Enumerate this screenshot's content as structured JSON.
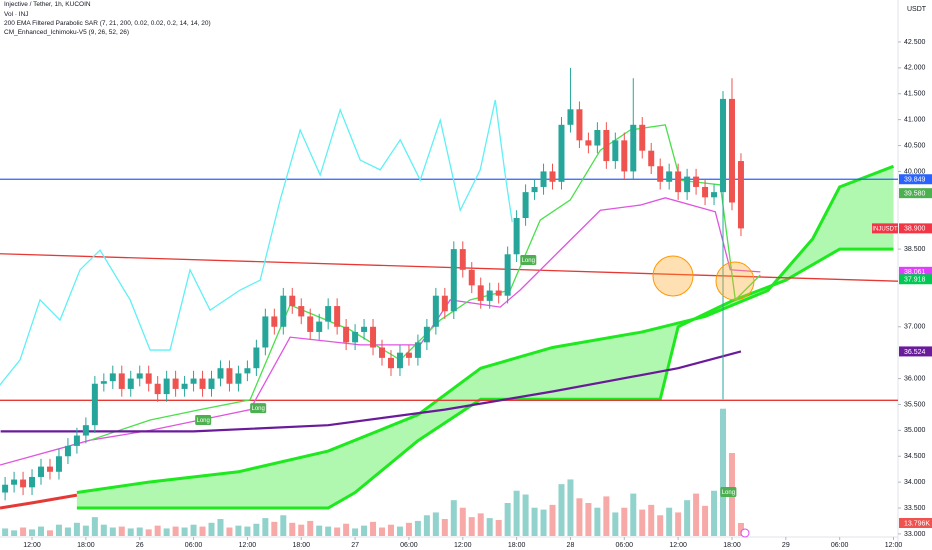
{
  "chart_data": {
    "type": "candlestick",
    "title": "Injective / Tether, 1h, KUCOIN",
    "indicators": [
      "Vol · INJ",
      "200 EMA Filtered Parabolic SAR (7, 21, 200, 0.02, 0.02, 0.2, 14, 14, 20)",
      "CM_Enhanced_Ichimoku-V5 (9, 26, 52, 26)"
    ],
    "currency": "USDT",
    "up_color": "#26a69a",
    "down_color": "#ef5350",
    "x": [
      9,
      10,
      11,
      12,
      13,
      14,
      15,
      16,
      17,
      18,
      19,
      20,
      21,
      22,
      23,
      24,
      25,
      26,
      27,
      28,
      29,
      30,
      31,
      32,
      33,
      34,
      35,
      36,
      37,
      38,
      39,
      40,
      41,
      42,
      43,
      44,
      45,
      46,
      47,
      48,
      49,
      50,
      51,
      52,
      53,
      54,
      55,
      56,
      57,
      58,
      59,
      60,
      61,
      62,
      63,
      64,
      65,
      66,
      67,
      68,
      69,
      70,
      71,
      72,
      73,
      74,
      75,
      76,
      77,
      78,
      79,
      80,
      81,
      82,
      83,
      84,
      85,
      86,
      87,
      88,
      89,
      90,
      91
    ],
    "open": [
      33.8,
      33.95,
      34.05,
      33.9,
      34.1,
      34.3,
      34.2,
      34.5,
      34.7,
      34.9,
      35.1,
      35.9,
      35.95,
      36.1,
      35.8,
      36.0,
      36.1,
      35.9,
      35.7,
      36.0,
      35.8,
      35.9,
      36.0,
      35.8,
      36.0,
      36.2,
      35.9,
      36.1,
      36.2,
      36.6,
      37.2,
      37.0,
      37.6,
      37.4,
      37.2,
      36.9,
      37.1,
      37.4,
      37.0,
      36.7,
      36.9,
      37.0,
      36.6,
      36.4,
      36.2,
      36.5,
      36.4,
      36.7,
      37.0,
      37.6,
      37.3,
      38.5,
      38.1,
      37.8,
      37.5,
      37.7,
      37.6,
      38.4,
      39.1,
      39.6,
      39.7,
      40.0,
      39.8,
      40.9,
      41.2,
      40.6,
      40.5,
      40.8,
      40.2,
      40.6,
      40.0,
      40.9,
      40.4,
      40.1,
      39.8,
      40.0,
      39.6,
      39.9,
      39.7,
      39.5,
      39.6,
      41.4,
      40.2
    ],
    "high": [
      34.1,
      34.2,
      34.2,
      34.25,
      34.45,
      34.45,
      34.65,
      34.85,
      35.05,
      35.25,
      36.05,
      36.1,
      36.25,
      36.25,
      36.15,
      36.25,
      36.25,
      36.05,
      36.15,
      36.15,
      36.05,
      36.15,
      36.15,
      36.15,
      36.35,
      36.35,
      36.25,
      36.35,
      36.75,
      37.35,
      37.35,
      37.75,
      37.75,
      37.55,
      37.35,
      37.25,
      37.55,
      37.55,
      37.15,
      37.05,
      37.15,
      37.15,
      36.75,
      36.55,
      36.65,
      36.65,
      36.85,
      37.15,
      37.75,
      37.75,
      38.65,
      38.65,
      38.25,
      37.95,
      37.85,
      37.85,
      38.55,
      39.25,
      39.75,
      39.85,
      40.15,
      40.15,
      41.05,
      42.0,
      41.35,
      40.75,
      40.95,
      40.95,
      40.75,
      40.75,
      41.8,
      41.05,
      40.55,
      40.25,
      40.15,
      40.15,
      40.05,
      40.05,
      39.85,
      39.75,
      41.55,
      41.8,
      40.35
    ],
    "low": [
      33.65,
      33.8,
      33.75,
      33.75,
      33.95,
      34.05,
      34.05,
      34.35,
      34.55,
      34.75,
      34.95,
      35.75,
      35.8,
      35.65,
      35.65,
      35.85,
      35.75,
      35.55,
      35.55,
      35.65,
      35.65,
      35.75,
      35.65,
      35.65,
      35.85,
      35.75,
      35.75,
      35.95,
      36.05,
      36.45,
      36.85,
      36.85,
      37.25,
      37.05,
      36.75,
      36.75,
      36.95,
      36.85,
      36.55,
      36.55,
      36.75,
      36.45,
      36.25,
      36.05,
      36.05,
      36.25,
      36.25,
      36.55,
      36.85,
      37.15,
      37.15,
      37.95,
      37.65,
      37.35,
      37.35,
      37.45,
      37.45,
      38.25,
      38.95,
      39.45,
      39.55,
      39.65,
      39.65,
      40.75,
      40.45,
      40.35,
      40.35,
      40.05,
      40.05,
      39.85,
      39.85,
      40.25,
      39.95,
      39.65,
      39.65,
      39.45,
      39.45,
      39.55,
      39.35,
      39.35,
      35.6,
      39.25,
      38.75
    ],
    "close": [
      33.95,
      34.05,
      33.9,
      34.1,
      34.3,
      34.2,
      34.5,
      34.7,
      34.9,
      35.1,
      35.9,
      35.95,
      36.1,
      35.8,
      36.0,
      36.1,
      35.9,
      35.7,
      36.0,
      35.8,
      35.9,
      36.0,
      35.8,
      36.0,
      36.2,
      35.9,
      36.1,
      36.2,
      36.6,
      37.2,
      37.0,
      37.6,
      37.4,
      37.2,
      36.9,
      37.1,
      37.4,
      37.0,
      36.7,
      36.9,
      37.0,
      36.6,
      36.4,
      36.2,
      36.5,
      36.4,
      36.7,
      37.0,
      37.6,
      37.3,
      38.5,
      38.1,
      37.8,
      37.5,
      37.7,
      37.6,
      38.4,
      39.1,
      39.6,
      39.7,
      40.0,
      39.8,
      40.9,
      41.2,
      40.6,
      40.5,
      40.8,
      40.2,
      40.6,
      40.0,
      40.9,
      40.4,
      40.1,
      39.8,
      40.0,
      39.6,
      39.9,
      39.7,
      39.5,
      39.6,
      41.4,
      39.4,
      38.9
    ],
    "volume": [
      8,
      6,
      9,
      7,
      10,
      6,
      12,
      9,
      14,
      11,
      20,
      12,
      9,
      10,
      8,
      9,
      7,
      11,
      8,
      10,
      9,
      12,
      10,
      14,
      18,
      9,
      11,
      10,
      13,
      19,
      15,
      22,
      14,
      12,
      16,
      11,
      10,
      9,
      13,
      8,
      11,
      15,
      9,
      12,
      10,
      14,
      16,
      22,
      25,
      18,
      38,
      30,
      20,
      24,
      19,
      17,
      35,
      48,
      44,
      30,
      28,
      33,
      55,
      60,
      40,
      35,
      30,
      42,
      25,
      30,
      45,
      28,
      33,
      22,
      30,
      25,
      38,
      45,
      32,
      48,
      135,
      88,
      13.796
    ],
    "volume_ylim": [
      0,
      140
    ],
    "volume_tag": {
      "value": 13.796,
      "label": "13.796K"
    },
    "xlim": [
      8.43,
      108.5
    ],
    "ylim": [
      32.96,
      43.31
    ],
    "xticks": [
      {
        "value": 12,
        "label": "12:00"
      },
      {
        "value": 18,
        "label": "18:00"
      },
      {
        "value": 24,
        "label": "26"
      },
      {
        "value": 30,
        "label": "06:00"
      },
      {
        "value": 36,
        "label": "12:00"
      },
      {
        "value": 42,
        "label": "18:00"
      },
      {
        "value": 48,
        "label": "27"
      },
      {
        "value": 54,
        "label": "06:00"
      },
      {
        "value": 60,
        "label": "12:00"
      },
      {
        "value": 66,
        "label": "18:00"
      },
      {
        "value": 72,
        "label": "28"
      },
      {
        "value": 78,
        "label": "06:00"
      },
      {
        "value": 84,
        "label": "12:00"
      },
      {
        "value": 90,
        "label": "18:00"
      },
      {
        "value": 96,
        "label": "29"
      },
      {
        "value": 102,
        "label": "06:00"
      },
      {
        "value": 108,
        "label": "12:00"
      }
    ],
    "yticks": [
      {
        "value": 33,
        "label": "33.000"
      },
      {
        "value": 33.5,
        "label": "33.500"
      },
      {
        "value": 34,
        "label": "34.000"
      },
      {
        "value": 34.5,
        "label": "34.500"
      },
      {
        "value": 35,
        "label": "35.000"
      },
      {
        "value": 35.5,
        "label": "35.500"
      },
      {
        "value": 36,
        "label": "36.000"
      },
      {
        "value": 37,
        "label": "37.000"
      },
      {
        "value": 38.5,
        "label": "38.500"
      },
      {
        "value": 40,
        "label": "40.000"
      },
      {
        "value": 40.5,
        "label": "40.500"
      },
      {
        "value": 41,
        "label": "41.000"
      },
      {
        "value": 41.5,
        "label": "41.500"
      },
      {
        "value": 42,
        "label": "42.000"
      },
      {
        "value": 42.5,
        "label": "42.500"
      }
    ],
    "cloud": {
      "color": "#1ee81e",
      "fill": "rgba(30,232,30,0.35)",
      "spanA": {
        "x": [
          17,
          25,
          35,
          45,
          55,
          62,
          70,
          80,
          87,
          94,
          99,
          102,
          105,
          108
        ],
        "values": [
          33.8,
          34.0,
          34.2,
          34.6,
          35.3,
          36.2,
          36.6,
          36.9,
          37.2,
          37.7,
          38.7,
          39.7,
          39.9,
          40.1
        ]
      },
      "spanB": {
        "x": [
          17,
          25,
          45,
          48,
          55,
          62,
          82,
          84,
          90,
          96,
          102,
          108
        ],
        "values": [
          33.5,
          33.5,
          33.5,
          33.8,
          34.8,
          35.6,
          35.6,
          37.0,
          37.5,
          37.9,
          38.5,
          38.5
        ]
      }
    },
    "levels": [
      {
        "color": "#2962ff",
        "x": [
          8.43,
          108.5
        ],
        "values": [
          39.849,
          39.849
        ]
      },
      {
        "color": "#e53935",
        "x": [
          8.43,
          108.5
        ],
        "values": [
          38.41,
          37.88
        ]
      },
      {
        "color": "#e53935",
        "x": [
          8.43,
          108.5
        ],
        "values": [
          35.58,
          35.58
        ]
      }
    ],
    "lines": [
      {
        "color": "#e53935",
        "width": 3,
        "x": [
          8.43,
          12,
          17
        ],
        "values": [
          33.5,
          33.6,
          33.75
        ]
      },
      {
        "color": "#5ff0f5",
        "width": 1.3,
        "x": [
          8.43,
          10.66,
          12.89,
          15.12,
          17.35,
          19.58,
          22.93,
          25.16,
          27.38,
          29.61,
          31.84,
          35.19,
          37.42,
          39.65,
          41.88,
          44.11,
          46.34,
          48.57,
          50.8,
          53.03,
          55.26,
          57.49,
          59.72,
          61.94,
          63.62,
          64.73,
          65.51
        ],
        "values": [
          35.88,
          36.36,
          37.52,
          37.13,
          38.1,
          38.48,
          37.52,
          36.55,
          36.55,
          38.1,
          37.32,
          37.71,
          37.9,
          39.45,
          40.8,
          39.93,
          41.19,
          40.22,
          40.03,
          40.61,
          39.83,
          40.99,
          39.25,
          40.03,
          41.38,
          39.93,
          39.02
        ]
      },
      {
        "color": "#e055e0",
        "width": 1.3,
        "x": [
          8.43,
          18.47,
          25.16,
          30.73,
          36.3,
          40.76,
          48.57,
          55.26,
          58.6,
          64.17,
          66.4,
          70.86,
          75.33,
          79.78,
          82.57,
          88.14,
          89.81,
          93.16
        ],
        "values": [
          34.33,
          34.81,
          35.0,
          35.2,
          35.4,
          36.8,
          36.65,
          36.65,
          37.52,
          37.38,
          37.71,
          38.48,
          39.25,
          39.35,
          39.49,
          39.22,
          38.1,
          38.06
        ]
      },
      {
        "color": "#4ae04a",
        "width": 1.3,
        "x": [
          18.47,
          25.16,
          30.73,
          36.3,
          40.76,
          47.45,
          53.03,
          57.49,
          60.83,
          65.29,
          68.63,
          71.98,
          75.33,
          78.67,
          82.57,
          84.24,
          88.7,
          90.37,
          93.16
        ],
        "values": [
          34.81,
          35.2,
          35.4,
          35.59,
          37.42,
          36.94,
          36.36,
          37.13,
          37.52,
          37.71,
          39.06,
          39.45,
          40.41,
          40.8,
          40.9,
          39.83,
          39.74,
          37.52,
          38.0
        ]
      },
      {
        "color": "#6a1b9a",
        "width": 2.2,
        "x": [
          8.5,
          30,
          45,
          58,
          70,
          84,
          91
        ],
        "values": [
          34.98,
          34.98,
          35.1,
          35.4,
          35.75,
          36.2,
          36.524
        ]
      }
    ],
    "signals": [
      {
        "text": "Long",
        "x": 31.07,
        "y": 35.2
      },
      {
        "text": "Long",
        "x": 37.2,
        "y": 35.43
      },
      {
        "text": "Long",
        "x": 67.3,
        "y": 38.29
      },
      {
        "text": "Long",
        "x": 89.6,
        "y": 33.81
      }
    ],
    "price_tags": [
      {
        "value": 39.849,
        "label": "39.849",
        "color": "#2962ff"
      },
      {
        "value": 39.58,
        "label": "39.580",
        "color": "#4caf50"
      },
      {
        "value": 38.9,
        "label": "38.900",
        "color": "#f23645"
      },
      {
        "value": 38.061,
        "label": "38.061",
        "color": "#e040fb"
      },
      {
        "value": 37.918,
        "label": "37.918",
        "color": "#00c853"
      },
      {
        "value": 36.524,
        "label": "36.524",
        "color": "#6a1b9a"
      }
    ],
    "symbol_tag": {
      "value": 38.9,
      "label": "INJUSDT",
      "color": "#f23645"
    }
  }
}
